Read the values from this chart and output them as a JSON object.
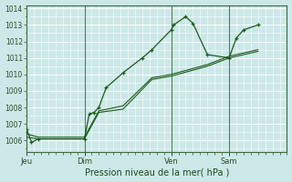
{
  "xlabel": "Pression niveau de la mer( hPa )",
  "bg_color": "#cce8e8",
  "grid_color": "#ffffff",
  "line_color": "#1a5c1a",
  "ylim": [
    1005.3,
    1014.2
  ],
  "yticks": [
    1006,
    1007,
    1008,
    1009,
    1010,
    1011,
    1012,
    1013,
    1014
  ],
  "day_labels": [
    "Jeu",
    "Dim",
    "Ven",
    "Sam"
  ],
  "day_positions": [
    0,
    24,
    60,
    84
  ],
  "xlim": [
    0,
    108
  ],
  "vline_positions": [
    0,
    24,
    60,
    84
  ],
  "series1_x": [
    0,
    2,
    5,
    24,
    26,
    28,
    30,
    33,
    40,
    48,
    52,
    60,
    61,
    66,
    69,
    75,
    84,
    87,
    90,
    96
  ],
  "series1_y": [
    1006.7,
    1005.9,
    1006.1,
    1006.1,
    1007.6,
    1007.7,
    1008.0,
    1009.2,
    1010.1,
    1011.0,
    1011.5,
    1012.7,
    1013.0,
    1013.5,
    1013.1,
    1011.2,
    1011.0,
    1012.2,
    1012.7,
    1013.0
  ],
  "series2_x": [
    0,
    5,
    24,
    30,
    40,
    52,
    60,
    75,
    84,
    96
  ],
  "series2_y": [
    1006.2,
    1006.1,
    1006.1,
    1007.7,
    1007.9,
    1009.7,
    1009.9,
    1010.5,
    1011.0,
    1011.4
  ],
  "series3_x": [
    0,
    5,
    24,
    30,
    40,
    52,
    60,
    75,
    84,
    96
  ],
  "series3_y": [
    1006.4,
    1006.2,
    1006.2,
    1007.8,
    1008.1,
    1009.8,
    1010.0,
    1010.6,
    1011.1,
    1011.5
  ]
}
